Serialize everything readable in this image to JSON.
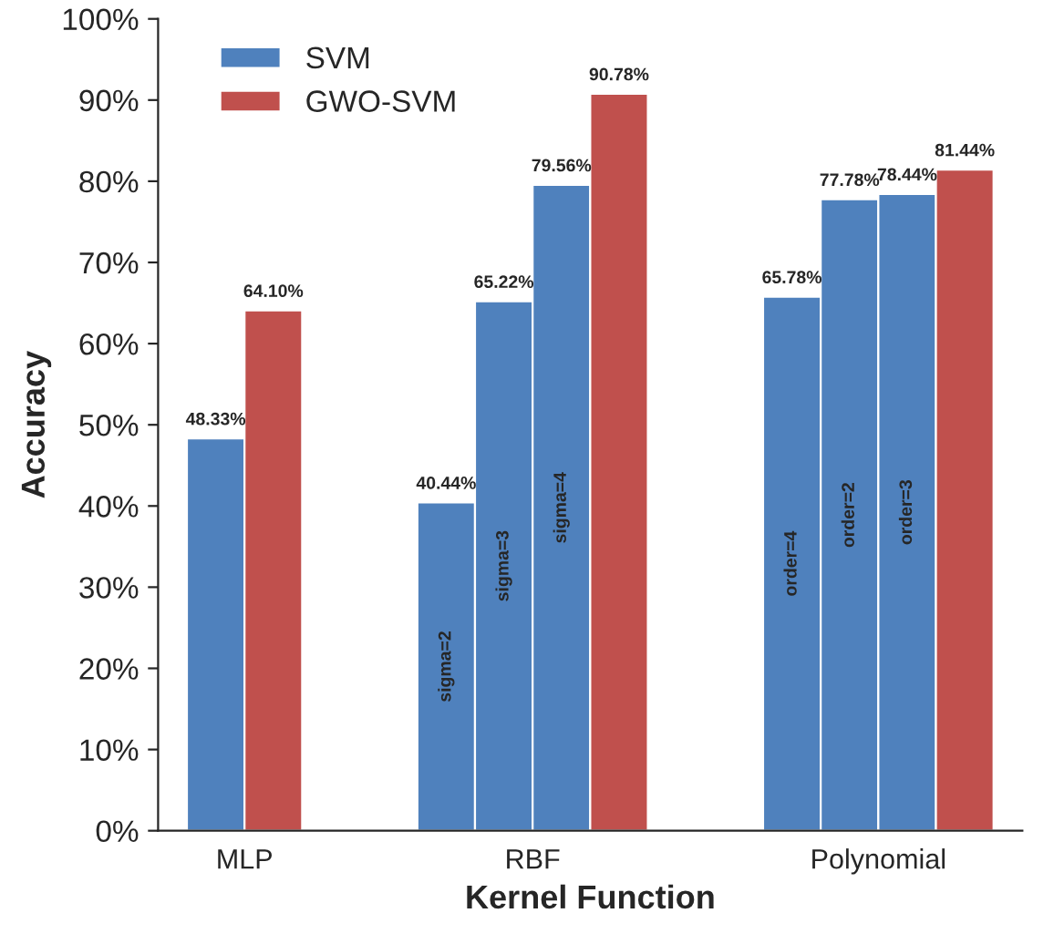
{
  "chart_data": {
    "type": "bar",
    "xlabel": "Kernel Function",
    "ylabel": "Accuracy",
    "categories": [
      "MLP",
      "RBF",
      "Polynomial"
    ],
    "series": [
      {
        "name": "SVM",
        "color": "#4f81bd",
        "values": [
          48.33,
          40.44,
          65.78
        ],
        "value_labels": [
          "48.33%",
          "40.44%",
          "65.78%"
        ]
      },
      {
        "color": "#4f81bd",
        "values": [
          null,
          65.22,
          77.78
        ],
        "value_labels": [
          null,
          "65.22%",
          "77.78%"
        ]
      },
      {
        "color": "#4f81bd",
        "values": [
          null,
          79.56,
          78.44
        ],
        "value_labels": [
          null,
          "79.56%",
          "78.44%"
        ]
      },
      {
        "name": "GWO-SVM",
        "color": "#c0504d",
        "values": [
          64.1,
          90.78,
          81.44
        ],
        "value_labels": [
          "64.10%",
          "90.78%",
          "81.44%"
        ]
      }
    ],
    "ylim": [
      0,
      100
    ],
    "yticks": [
      {
        "value": 0,
        "label": "0%"
      },
      {
        "value": 10,
        "label": "10%"
      },
      {
        "value": 20,
        "label": "20%"
      },
      {
        "value": 30,
        "label": "30%"
      },
      {
        "value": 40,
        "label": "40%"
      },
      {
        "value": 50,
        "label": "50%"
      },
      {
        "value": 60,
        "label": "60%"
      },
      {
        "value": 70,
        "label": "70%"
      },
      {
        "value": 80,
        "label": "80%"
      },
      {
        "value": 90,
        "label": "90%"
      },
      {
        "value": 100,
        "label": "100%"
      }
    ],
    "annotations": [
      "sigma=2",
      "sigma=3",
      "sigma=4",
      "order=4",
      "order=2",
      "order=3"
    ],
    "legend": "top left",
    "grid": false
  }
}
